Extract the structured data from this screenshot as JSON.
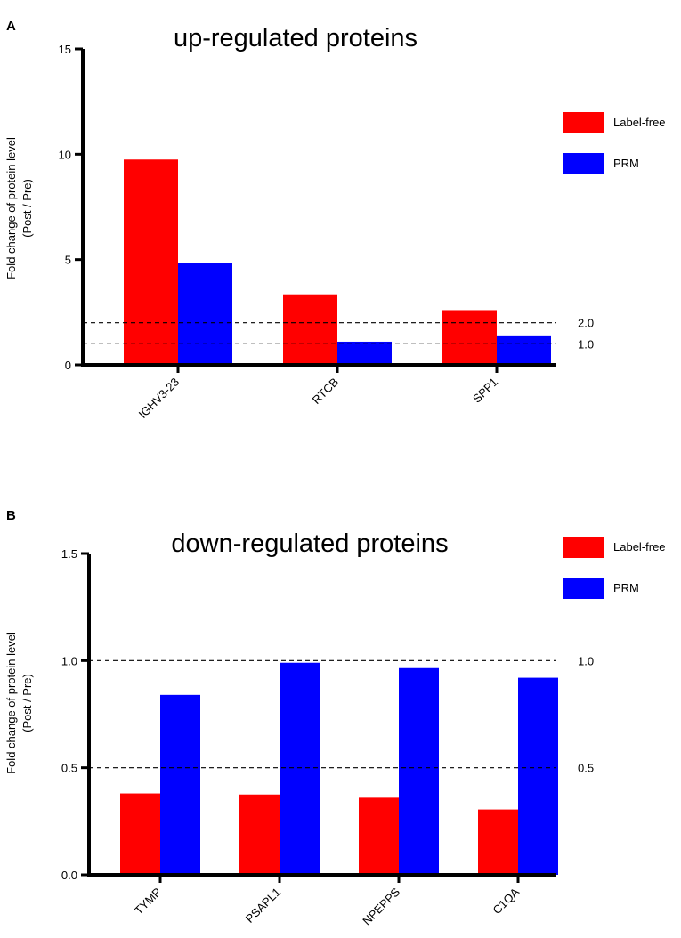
{
  "colors": {
    "label_free": "#ff0000",
    "prm": "#0000ff"
  },
  "chart_data": [
    {
      "type": "bar",
      "panel": "A",
      "title": "up-regulated proteins",
      "ylabel_line1": "Fold change of protein level",
      "ylabel_line2": "(Post / Pre)",
      "xlabel": "",
      "ylim": [
        0,
        15
      ],
      "yticks": [
        0,
        5,
        10,
        15
      ],
      "ytick_labels": [
        "0",
        "5",
        "10",
        "15"
      ],
      "categories": [
        "IGHV3-23",
        "RTCB",
        "SPP1"
      ],
      "series": [
        {
          "name": "Label-free",
          "color": "#ff0000",
          "values": [
            9.75,
            3.35,
            2.6
          ]
        },
        {
          "name": "PRM",
          "color": "#0000ff",
          "values": [
            4.85,
            1.1,
            1.4
          ]
        }
      ],
      "reference_lines": [
        {
          "value": 2.0,
          "label": "2.0"
        },
        {
          "value": 1.0,
          "label": "1.0"
        }
      ],
      "legend": [
        "Label-free",
        "PRM"
      ]
    },
    {
      "type": "bar",
      "panel": "B",
      "title": "down-regulated proteins",
      "ylabel_line1": "Fold change of protein level",
      "ylabel_line2": "(Post / Pre)",
      "xlabel": "",
      "ylim": [
        0,
        1.5
      ],
      "yticks": [
        0,
        0.5,
        1.0,
        1.5
      ],
      "ytick_labels": [
        "0.0",
        "0.5",
        "1.0",
        "1.5"
      ],
      "categories": [
        "TYMP",
        "PSAPL1",
        "NPEPPS",
        "C1QA"
      ],
      "series": [
        {
          "name": "Label-free",
          "color": "#ff0000",
          "values": [
            0.38,
            0.375,
            0.36,
            0.305
          ]
        },
        {
          "name": "PRM",
          "color": "#0000ff",
          "values": [
            0.84,
            0.99,
            0.965,
            0.92
          ]
        }
      ],
      "reference_lines": [
        {
          "value": 1.0,
          "label": "1.0"
        },
        {
          "value": 0.5,
          "label": "0.5"
        }
      ],
      "legend": [
        "Label-free",
        "PRM"
      ]
    }
  ]
}
